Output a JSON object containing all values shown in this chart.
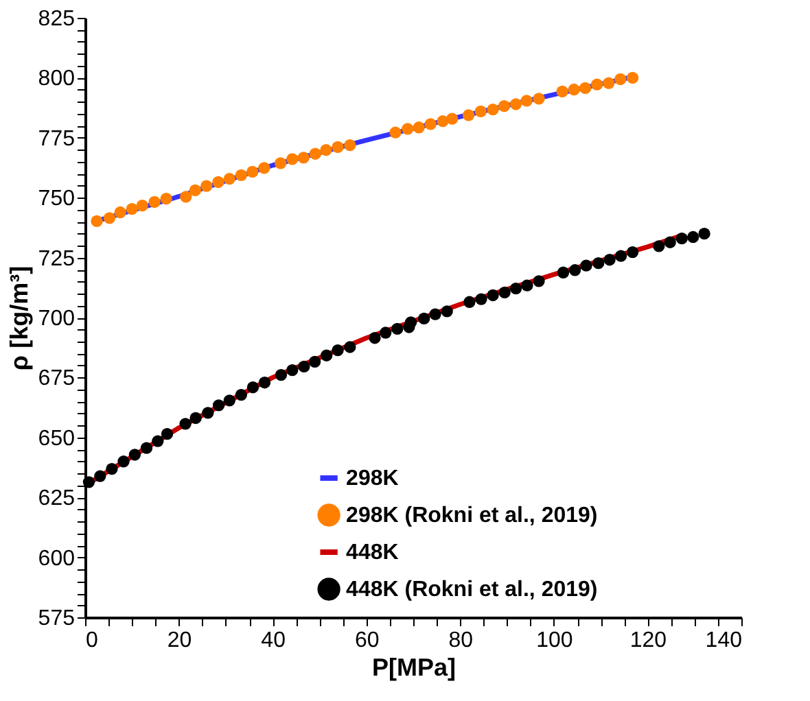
{
  "chart_data": {
    "type": "line",
    "xlabel": "P[MPa]",
    "ylabel": "ρ [kg/m³]",
    "xlim": [
      0,
      140
    ],
    "ylim": [
      575,
      825
    ],
    "xticks": [
      0,
      {
        "value": 5,
        "label": null
      },
      {
        "value": 10,
        "label": null
      },
      {
        "value": 15,
        "label": null
      },
      20,
      {
        "value": 25,
        "label": null
      },
      {
        "value": 30,
        "label": null
      },
      {
        "value": 35,
        "label": null
      },
      40,
      {
        "value": 45,
        "label": null
      },
      {
        "value": 50,
        "label": null
      },
      {
        "value": 55,
        "label": null
      },
      60,
      {
        "value": 65,
        "label": null
      },
      {
        "value": 70,
        "label": null
      },
      {
        "value": 75,
        "label": null
      },
      80,
      {
        "value": 85,
        "label": null
      },
      {
        "value": 90,
        "label": null
      },
      {
        "value": 95,
        "label": null
      },
      100,
      {
        "value": 105,
        "label": null
      },
      {
        "value": 110,
        "label": null
      },
      {
        "value": 115,
        "label": null
      },
      120,
      {
        "value": 125,
        "label": null
      },
      {
        "value": 130,
        "label": null
      },
      {
        "value": 135,
        "label": null
      },
      140
    ],
    "yticks": [
      575,
      {
        "value": 580,
        "label": null
      },
      {
        "value": 585,
        "label": null
      },
      {
        "value": 590,
        "label": null
      },
      {
        "value": 595,
        "label": null
      },
      600,
      {
        "value": 605,
        "label": null
      },
      {
        "value": 610,
        "label": null
      },
      {
        "value": 615,
        "label": null
      },
      {
        "value": 620,
        "label": null
      },
      625,
      {
        "value": 630,
        "label": null
      },
      {
        "value": 635,
        "label": null
      },
      {
        "value": 640,
        "label": null
      },
      {
        "value": 645,
        "label": null
      },
      650,
      {
        "value": 655,
        "label": null
      },
      {
        "value": 660,
        "label": null
      },
      {
        "value": 665,
        "label": null
      },
      {
        "value": 670,
        "label": null
      },
      675,
      {
        "value": 680,
        "label": null
      },
      {
        "value": 685,
        "label": null
      },
      {
        "value": 690,
        "label": null
      },
      {
        "value": 695,
        "label": null
      },
      700,
      {
        "value": 705,
        "label": null
      },
      {
        "value": 710,
        "label": null
      },
      {
        "value": 715,
        "label": null
      },
      {
        "value": 720,
        "label": null
      },
      725,
      {
        "value": 730,
        "label": null
      },
      {
        "value": 735,
        "label": null
      },
      {
        "value": 740,
        "label": null
      },
      {
        "value": 745,
        "label": null
      },
      750,
      {
        "value": 755,
        "label": null
      },
      {
        "value": 760,
        "label": null
      },
      {
        "value": 765,
        "label": null
      },
      {
        "value": 770,
        "label": null
      },
      775,
      {
        "value": 780,
        "label": null
      },
      {
        "value": 785,
        "label": null
      },
      {
        "value": 790,
        "label": null
      },
      {
        "value": 795,
        "label": null
      },
      800,
      {
        "value": 805,
        "label": null
      },
      {
        "value": 810,
        "label": null
      },
      {
        "value": 815,
        "label": null
      },
      {
        "value": 820,
        "label": null
      },
      825
    ],
    "grid": false,
    "legend": "bottom",
    "series": [
      {
        "name": "298K",
        "color": "#3333ff",
        "marker": "none",
        "x": [
          2,
          20,
          40,
          60,
          80,
          100,
          116
        ],
        "values": [
          740,
          750.5,
          763.5,
          774,
          783.8,
          793,
          800
        ]
      },
      {
        "name": "298K (Rokni et al., 2019)",
        "type": "scatter",
        "color": "#ff8000",
        "marker": "circle",
        "x": [
          2.5,
          5.2,
          7.5,
          10.0,
          12.2,
          14.8,
          17.3,
          21.5,
          23.5,
          25.9,
          28.4,
          30.8,
          33.3,
          35.7,
          38.2,
          41.7,
          44.2,
          46.6,
          49.1,
          51.4,
          53.9,
          56.5,
          66.2,
          68.8,
          71.2,
          73.7,
          76.3,
          78.3,
          81.8,
          84.4,
          87.0,
          89.4,
          91.9,
          94.2,
          96.8,
          101.8,
          104.3,
          106.7,
          109.2,
          111.7,
          114.2,
          116.8
        ],
        "values": [
          740.2,
          741.5,
          743.9,
          745.3,
          746.7,
          748.2,
          749.6,
          750.4,
          753.1,
          754.9,
          756.5,
          757.9,
          759.4,
          760.8,
          762.4,
          764.4,
          766.1,
          766.7,
          768.3,
          769.9,
          771.1,
          771.9,
          777.2,
          778.7,
          779.3,
          780.7,
          781.9,
          782.9,
          784.4,
          786.0,
          786.8,
          788.2,
          789.0,
          790.4,
          791.3,
          794.3,
          795.1,
          795.7,
          797.2,
          797.8,
          799.4,
          800
        ]
      },
      {
        "name": "448K",
        "color": "#cc0000",
        "marker": "none",
        "x": [
          0,
          20,
          40,
          60,
          80,
          100,
          120,
          127
        ],
        "values": [
          630,
          654,
          675,
          691.5,
          705.5,
          718,
          729.5,
          734
        ]
      },
      {
        "name": "448K (Rokni et al., 2019)",
        "type": "scatter",
        "color": "#000000",
        "marker": "circle",
        "x": [
          0.8,
          3.2,
          5.7,
          8.2,
          10.6,
          13.1,
          15.5,
          17.5,
          21.4,
          23.6,
          26.2,
          28.5,
          30.8,
          33.3,
          35.8,
          38.3,
          41.8,
          44.2,
          46.7,
          49.0,
          51.5,
          53.9,
          56.5,
          61.8,
          64.1,
          66.6,
          69.1,
          69.5,
          72.3,
          74.7,
          77.2,
          82.0,
          84.5,
          87.0,
          89.5,
          91.9,
          94.3,
          96.8,
          102.0,
          104.5,
          106.9,
          109.5,
          111.9,
          114.3,
          116.8,
          122.4,
          124.8,
          127.3,
          129.7,
          132.1
        ],
        "values": [
          631.4,
          633.9,
          636.9,
          640.0,
          642.8,
          645.6,
          648.5,
          651.5,
          655.7,
          658.1,
          660.3,
          663.4,
          665.4,
          667.8,
          670.9,
          672.9,
          676.1,
          678.1,
          679.6,
          681.6,
          684.2,
          686.4,
          687.7,
          691.5,
          693.7,
          695.3,
          696.0,
          698.0,
          699.6,
          701.4,
          702.6,
          706.5,
          707.7,
          709.3,
          710.5,
          712.1,
          713.4,
          715.2,
          718.8,
          719.8,
          721.7,
          722.7,
          724.1,
          725.7,
          727.3,
          729.8,
          731.4,
          733.0,
          733.6,
          735.0
        ]
      }
    ]
  }
}
